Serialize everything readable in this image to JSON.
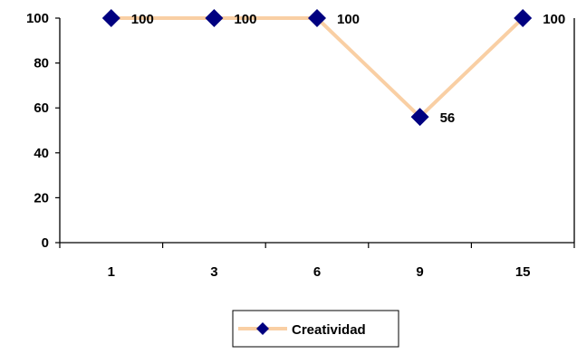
{
  "chart_data": {
    "type": "line",
    "categories": [
      "1",
      "3",
      "6",
      "9",
      "15"
    ],
    "series": [
      {
        "name": "Creatividad",
        "values": [
          100,
          100,
          100,
          56,
          100
        ],
        "line_color": "#F9CFA4",
        "marker_color": "#000080",
        "marker": "diamond"
      }
    ],
    "data_labels": [
      "100",
      "100",
      "100",
      "56",
      "100"
    ],
    "y_ticks": [
      "0",
      "20",
      "40",
      "60",
      "80",
      "100"
    ],
    "ylim": [
      0,
      100
    ],
    "grid": false,
    "legend_position": "bottom"
  }
}
